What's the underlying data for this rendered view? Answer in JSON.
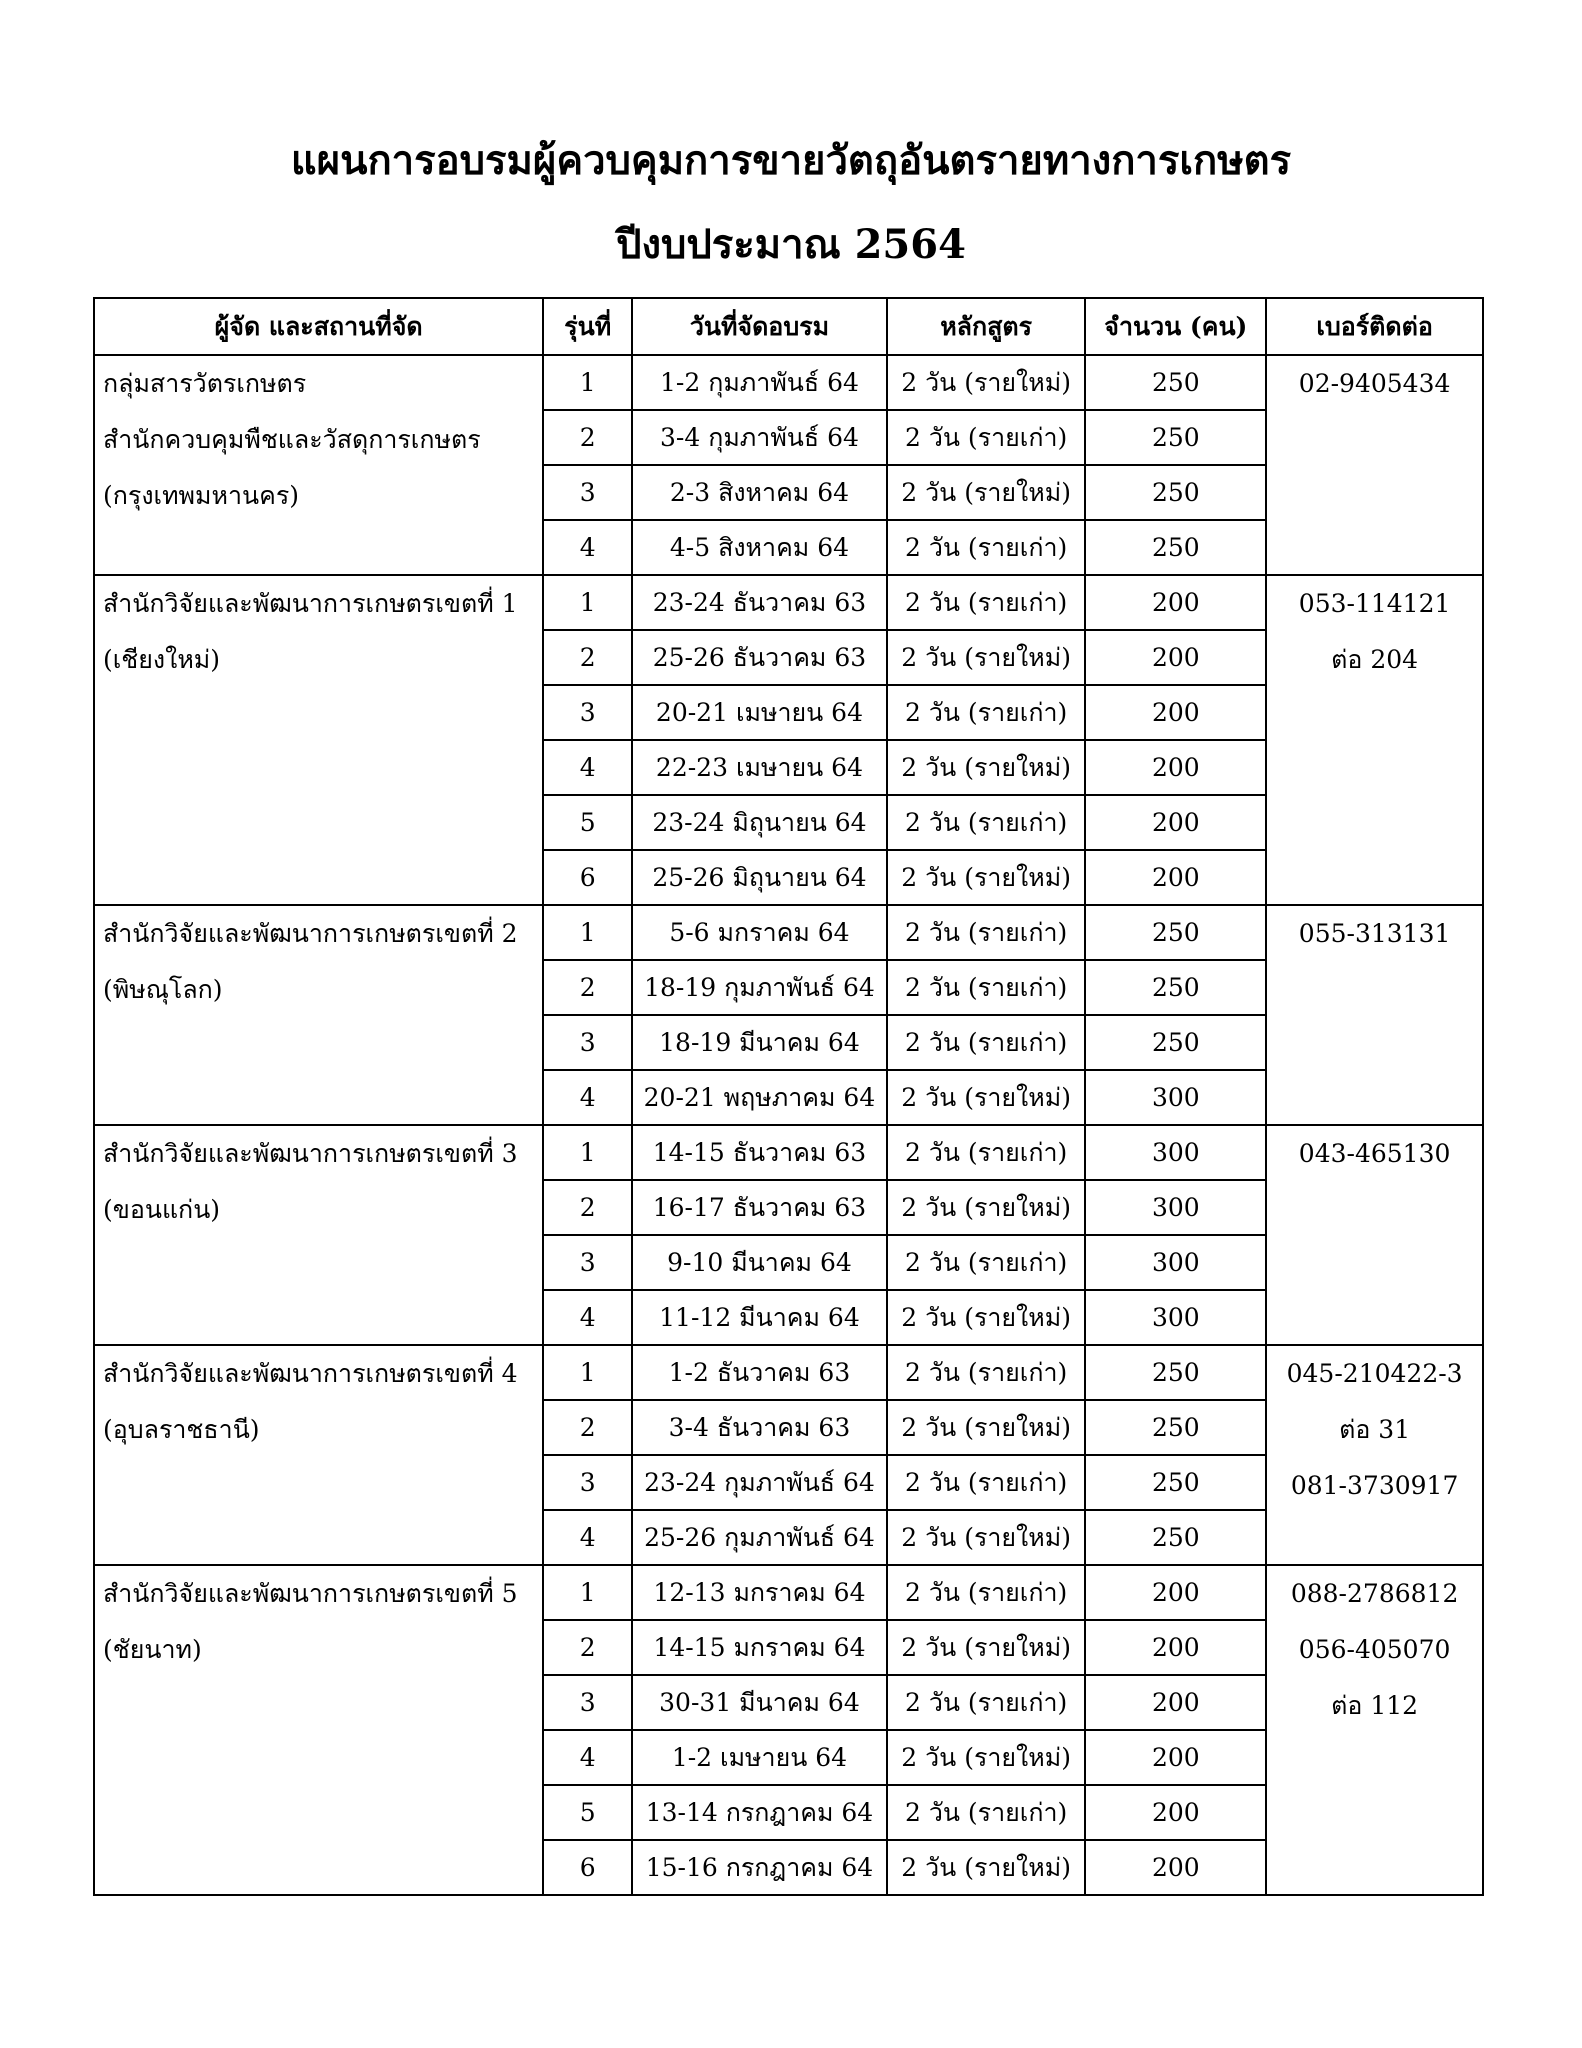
{
  "title": "แผนการอบรมผู้ควบคุมการขายวัตถุอันตรายทางการเกษตร",
  "subtitle": "ปีงบประมาณ 2564",
  "headers": [
    "ผู้จัด และสถานที่จัด",
    "รุ่นที่",
    "วันที่จัดอบรม",
    "หลักสูตร",
    "จำนวน (คน)",
    "เบอร์ติดต่อ"
  ],
  "groups": [
    {
      "organizer": [
        "กลุ่มสารวัตรเกษตร",
        "สำนักควบคุมพืชและวัสดุการเกษตร",
        "(กรุงเทพมหานคร)"
      ],
      "contact": [
        "02-9405434"
      ],
      "sessions": [
        [
          "1",
          "1-2 กุมภาพันธ์ 64",
          "2 วัน (รายใหม่)",
          "250"
        ],
        [
          "2",
          "3-4 กุมภาพันธ์ 64",
          "2 วัน (รายเก่า)",
          "250"
        ],
        [
          "3",
          "2-3 สิงหาคม 64",
          "2 วัน (รายใหม่)",
          "250"
        ],
        [
          "4",
          "4-5 สิงหาคม 64",
          "2 วัน (รายเก่า)",
          "250"
        ]
      ]
    },
    {
      "organizer": [
        "สำนักวิจัยและพัฒนาการเกษตรเขตที่ 1",
        "(เชียงใหม่)"
      ],
      "contact": [
        "053-114121",
        "ต่อ 204"
      ],
      "sessions": [
        [
          "1",
          "23-24 ธันวาคม 63",
          "2 วัน (รายเก่า)",
          "200"
        ],
        [
          "2",
          "25-26 ธันวาคม 63",
          "2 วัน (รายใหม่)",
          "200"
        ],
        [
          "3",
          "20-21 เมษายน 64",
          "2 วัน (รายเก่า)",
          "200"
        ],
        [
          "4",
          "22-23 เมษายน 64",
          "2 วัน (รายใหม่)",
          "200"
        ],
        [
          "5",
          "23-24 มิถุนายน 64",
          "2 วัน (รายเก่า)",
          "200"
        ],
        [
          "6",
          "25-26 มิถุนายน 64",
          "2 วัน (รายใหม่)",
          "200"
        ]
      ]
    },
    {
      "organizer": [
        "สำนักวิจัยและพัฒนาการเกษตรเขตที่ 2",
        "(พิษณุโลก)"
      ],
      "contact": [
        "055-313131"
      ],
      "sessions": [
        [
          "1",
          "5-6 มกราคม 64",
          "2 วัน (รายเก่า)",
          "250"
        ],
        [
          "2",
          "18-19 กุมภาพันธ์ 64",
          "2 วัน (รายเก่า)",
          "250"
        ],
        [
          "3",
          "18-19 มีนาคม 64",
          "2 วัน (รายเก่า)",
          "250"
        ],
        [
          "4",
          "20-21 พฤษภาคม 64",
          "2 วัน (รายใหม่)",
          "300"
        ]
      ]
    },
    {
      "organizer": [
        "สำนักวิจัยและพัฒนาการเกษตรเขตที่ 3",
        "(ขอนแก่น)"
      ],
      "contact": [
        "043-465130"
      ],
      "sessions": [
        [
          "1",
          "14-15 ธันวาคม 63",
          "2 วัน (รายเก่า)",
          "300"
        ],
        [
          "2",
          "16-17 ธันวาคม 63",
          "2 วัน (รายใหม่)",
          "300"
        ],
        [
          "3",
          "9-10 มีนาคม 64",
          "2 วัน (รายเก่า)",
          "300"
        ],
        [
          "4",
          "11-12 มีนาคม 64",
          "2 วัน (รายใหม่)",
          "300"
        ]
      ]
    },
    {
      "organizer": [
        "สำนักวิจัยและพัฒนาการเกษตรเขตที่ 4",
        "(อุบลราชธานี)"
      ],
      "contact": [
        "045-210422-3",
        "ต่อ 31",
        "081-3730917"
      ],
      "sessions": [
        [
          "1",
          "1-2 ธันวาคม 63",
          "2 วัน (รายเก่า)",
          "250"
        ],
        [
          "2",
          "3-4 ธันวาคม 63",
          "2 วัน (รายใหม่)",
          "250"
        ],
        [
          "3",
          "23-24 กุมภาพันธ์ 64",
          "2 วัน (รายเก่า)",
          "250"
        ],
        [
          "4",
          "25-26 กุมภาพันธ์ 64",
          "2 วัน (รายใหม่)",
          "250"
        ]
      ]
    },
    {
      "organizer": [
        "สำนักวิจัยและพัฒนาการเกษตรเขตที่ 5",
        "(ชัยนาท)"
      ],
      "contact": [
        "088-2786812",
        "056-405070",
        "ต่อ 112"
      ],
      "sessions": [
        [
          "1",
          "12-13 มกราคม 64",
          "2 วัน (รายเก่า)",
          "200"
        ],
        [
          "2",
          "14-15 มกราคม 64",
          "2 วัน (รายใหม่)",
          "200"
        ],
        [
          "3",
          "30-31 มีนาคม 64",
          "2 วัน (รายเก่า)",
          "200"
        ],
        [
          "4",
          "1-2 เมษายน 64",
          "2 วัน (รายใหม่)",
          "200"
        ],
        [
          "5",
          "13-14 กรกฎาคม 64",
          "2 วัน (รายเก่า)",
          "200"
        ],
        [
          "6",
          "15-16 กรกฎาคม 64",
          "2 วัน (รายใหม่)",
          "200"
        ]
      ]
    }
  ]
}
